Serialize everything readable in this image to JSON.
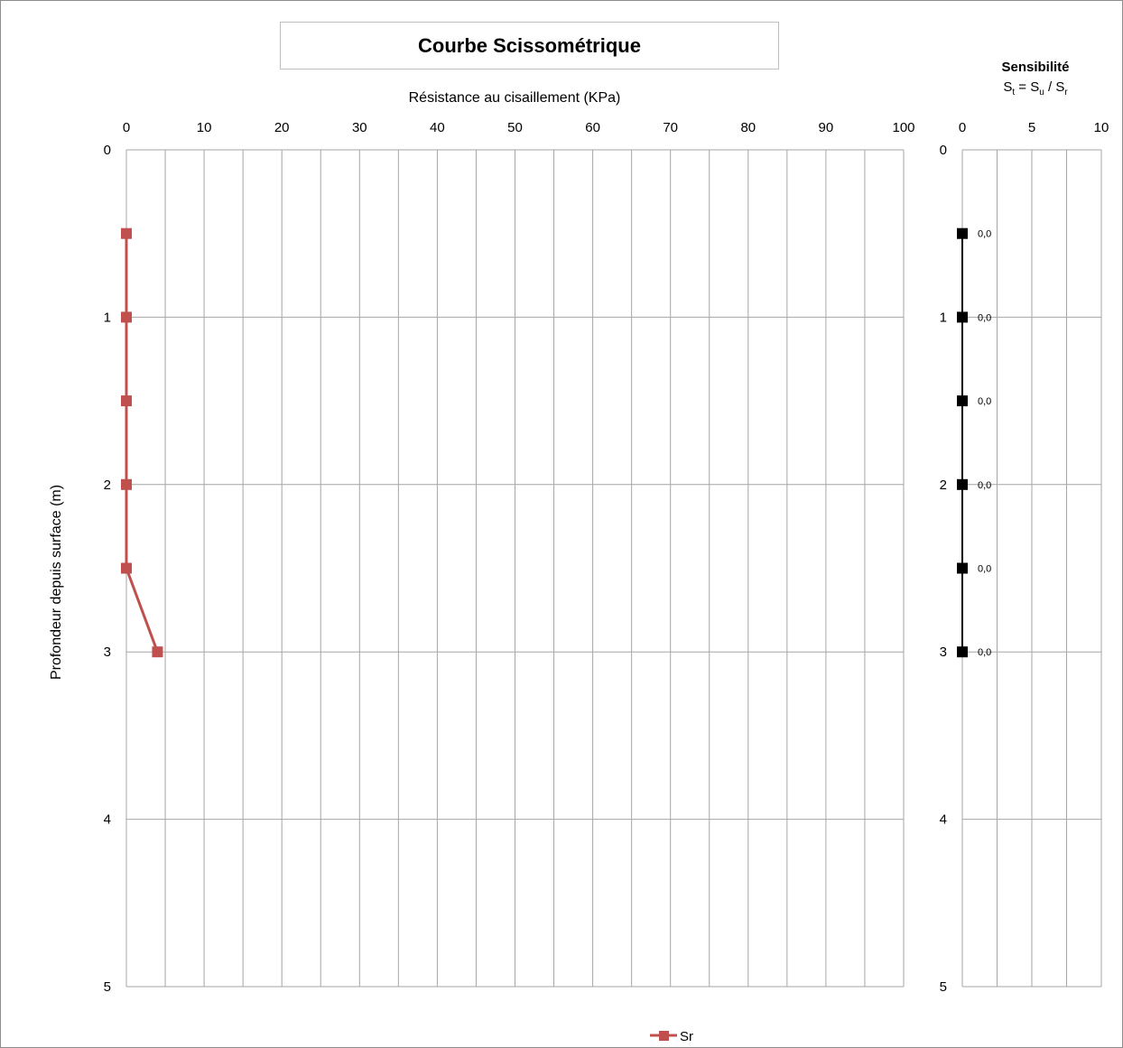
{
  "title": "Courbe Scissométrique",
  "chart_data": [
    {
      "type": "line",
      "xlabel": "Résistance au cisaillement (KPa)",
      "ylabel": "Profondeur depuis surface (m)",
      "xlim": [
        0,
        100
      ],
      "ylim": [
        0,
        5
      ],
      "x_ticks": [
        "0",
        "10",
        "20",
        "30",
        "40",
        "50",
        "60",
        "70",
        "80",
        "90",
        "100"
      ],
      "y_ticks": [
        "0",
        "1",
        "2",
        "3",
        "4",
        "5"
      ],
      "grid": true,
      "y_inverted": true,
      "x_axis_position": "top",
      "legend_position": "bottom",
      "series": [
        {
          "name": "Sr",
          "color": "#c0504d",
          "points": [
            {
              "x": 0,
              "y": 0.5
            },
            {
              "x": 0,
              "y": 1.0
            },
            {
              "x": 0,
              "y": 1.5
            },
            {
              "x": 0,
              "y": 2.0
            },
            {
              "x": 0,
              "y": 2.5
            },
            {
              "x": 4,
              "y": 3.0
            }
          ]
        }
      ]
    },
    {
      "type": "line",
      "title": "Sensibilité",
      "subtitle": {
        "S1": "S",
        "t": "t",
        "eq": " = ",
        "S2": "S",
        "u": "u",
        "slash": " / ",
        "S3": "S",
        "r": "r"
      },
      "xlim": [
        0,
        10
      ],
      "ylim": [
        0,
        5
      ],
      "x_ticks": [
        "0",
        "5",
        "10"
      ],
      "y_ticks": [
        "0",
        "1",
        "2",
        "3",
        "4",
        "5"
      ],
      "grid": true,
      "y_inverted": true,
      "x_axis_position": "top",
      "series": [
        {
          "color": "#000000",
          "points": [
            {
              "x": 0,
              "y": 0.5,
              "label": "0,0"
            },
            {
              "x": 0,
              "y": 1.0,
              "label": "0,0"
            },
            {
              "x": 0,
              "y": 1.5,
              "label": "0,0"
            },
            {
              "x": 0,
              "y": 2.0,
              "label": "0,0"
            },
            {
              "x": 0,
              "y": 2.5,
              "label": "0,0"
            },
            {
              "x": 0,
              "y": 3.0,
              "label": "0,0"
            }
          ]
        }
      ]
    }
  ]
}
